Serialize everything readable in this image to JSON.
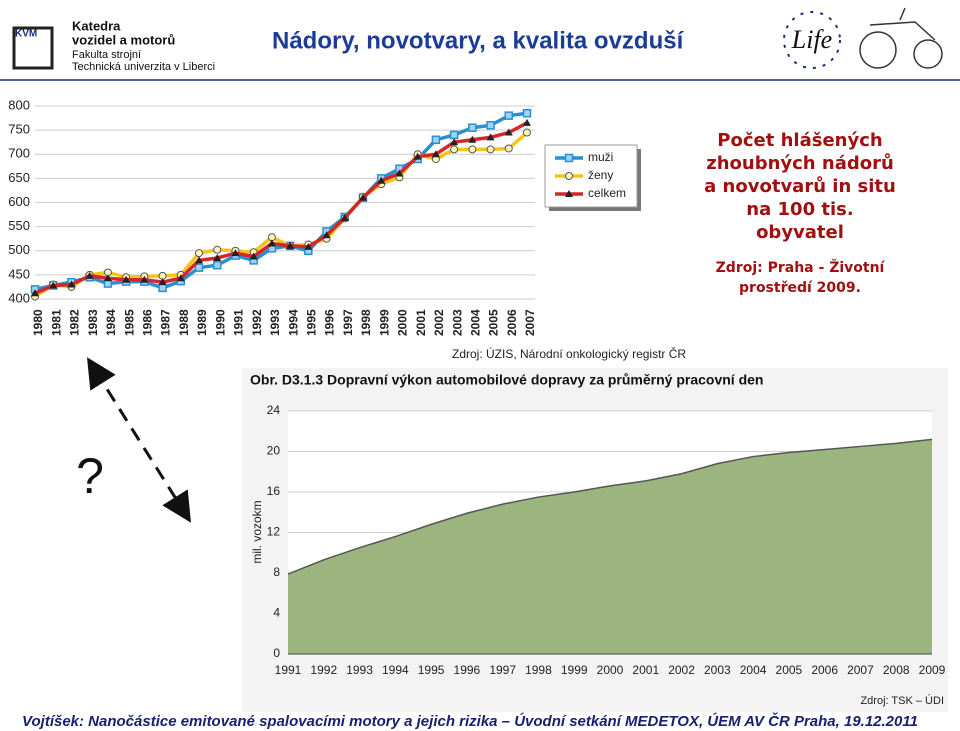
{
  "header": {
    "logo_abbr": "KVM",
    "logo_lines": [
      "Katedra",
      "vozidel a motorů",
      "Fakulta strojní",
      "Technická univerzita v Liberci"
    ],
    "title": "Nádory, novotvary, a kvalita ovzduší",
    "life_logo": "Life"
  },
  "chart_data": [
    {
      "type": "line",
      "categories": [
        "1980",
        "1981",
        "1982",
        "1983",
        "1984",
        "1985",
        "1986",
        "1987",
        "1988",
        "1989",
        "1990",
        "1991",
        "1992",
        "1993",
        "1994",
        "1995",
        "1996",
        "1997",
        "1998",
        "1999",
        "2000",
        "2001",
        "2002",
        "2003",
        "2004",
        "2005",
        "2006",
        "2007"
      ],
      "series": [
        {
          "name": "muži",
          "color": "#2a8fd0",
          "marker": "square",
          "values": [
            420,
            428,
            435,
            445,
            432,
            436,
            436,
            423,
            437,
            465,
            470,
            490,
            480,
            505,
            510,
            500,
            540,
            570,
            610,
            650,
            670,
            690,
            730,
            740,
            755,
            760,
            780,
            785
          ]
        },
        {
          "name": "ženy",
          "color": "#f5c518",
          "marker": "circle",
          "values": [
            405,
            430,
            425,
            450,
            455,
            445,
            447,
            448,
            450,
            495,
            502,
            500,
            497,
            528,
            510,
            513,
            525,
            567,
            612,
            638,
            652,
            700,
            690,
            710,
            710,
            710,
            712,
            745
          ]
        },
        {
          "name": "celkem",
          "color": "#d7262b",
          "marker": "triangle",
          "values": [
            412,
            428,
            430,
            448,
            443,
            440,
            440,
            435,
            443,
            480,
            485,
            495,
            488,
            515,
            510,
            508,
            532,
            568,
            610,
            645,
            660,
            695,
            700,
            725,
            730,
            735,
            745,
            765
          ]
        }
      ],
      "ylim": [
        400,
        800
      ],
      "yticks": [
        400,
        450,
        500,
        550,
        600,
        650,
        700,
        750,
        800
      ],
      "grid": true,
      "annotation": [
        "Počet hlášených",
        "zhoubných nádorů",
        "a novotvarů in situ",
        "na 100 tis.",
        "obyvatel"
      ],
      "annotation_source": [
        "Zdroj: Praha - Životní",
        "prostředí 2009."
      ],
      "source": "Zdroj: ÚZIS, Národní onkologický registr ČR"
    },
    {
      "type": "area",
      "title": "Obr. D3.1.3 Dopravní výkon automobilové dopravy za průměrný pracovní den",
      "y_label": "mil. vozokm",
      "categories": [
        "1991",
        "1992",
        "1993",
        "1994",
        "1995",
        "1996",
        "1997",
        "1998",
        "1999",
        "2000",
        "2001",
        "2002",
        "2003",
        "2004",
        "2005",
        "2006",
        "2007",
        "2008",
        "2009"
      ],
      "values": [
        7.9,
        9.3,
        10.5,
        11.6,
        12.8,
        13.9,
        14.8,
        15.5,
        16.0,
        16.6,
        17.1,
        17.8,
        18.8,
        19.5,
        19.9,
        20.2,
        20.5,
        20.8,
        21.2
      ],
      "color": "#9cb57f",
      "ylim": [
        0,
        24
      ],
      "yticks": [
        0,
        4,
        8,
        12,
        16,
        20,
        24
      ],
      "grid": true,
      "source": "Zdroj: TSK – ÚDI"
    }
  ],
  "question_mark": "?",
  "footer": "Vojtíšek: Nanočástice emitované spalovacími motory a jejich rizika – Úvodní setkání MEDETOX, ÚEM AV ČR Praha, 19.12.2011"
}
